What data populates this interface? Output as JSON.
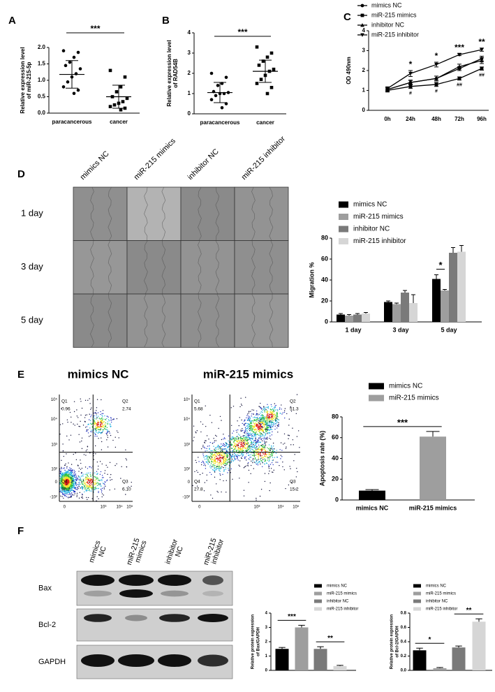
{
  "panel_labels": [
    "A",
    "B",
    "C",
    "D",
    "E",
    "F"
  ],
  "chart_data": [
    {
      "type": "dot",
      "ylabel": [
        "Relative expression level",
        "of miR-215-5p"
      ],
      "categories": [
        "paracancerous",
        "cancer"
      ],
      "markers": [
        "circle",
        "square"
      ],
      "color": "#000000",
      "points": [
        [
          1.9,
          1.85,
          1.7,
          1.55,
          1.45,
          1.35,
          1.2,
          1.1,
          0.95,
          0.8,
          0.7,
          0.6
        ],
        [
          1.3,
          1.1,
          0.8,
          0.65,
          0.5,
          0.45,
          0.35,
          0.3,
          0.25,
          0.2,
          0.15,
          0.1
        ]
      ],
      "means": [
        1.18,
        0.5
      ],
      "sds": [
        0.42,
        0.35
      ],
      "ylim": [
        0,
        2
      ],
      "yticks": [
        {
          "value": 0,
          "label": "0.0"
        },
        {
          "value": 0.5,
          "label": "0.5"
        },
        {
          "value": 1,
          "label": "1.0"
        },
        {
          "value": 1.5,
          "label": "1.5"
        },
        {
          "value": 2,
          "label": "2.0"
        }
      ],
      "significance": [
        {
          "label": "***",
          "from": 0,
          "to": 1
        }
      ]
    },
    {
      "type": "dot",
      "ylabel": [
        "Relative expression level",
        "of RAD54B"
      ],
      "categories": [
        "paracancerous",
        "cancer"
      ],
      "markers": [
        "circle",
        "square"
      ],
      "color": "#000000",
      "points": [
        [
          2.0,
          1.8,
          1.5,
          1.4,
          1.1,
          1.05,
          1.0,
          1.0,
          0.9,
          0.7,
          0.5,
          0.3
        ],
        [
          3.3,
          3.0,
          2.8,
          2.6,
          2.4,
          2.2,
          2.1,
          1.9,
          1.7,
          1.5,
          1.3,
          1.0
        ]
      ],
      "means": [
        1.05,
        2.1
      ],
      "sds": [
        0.5,
        0.55
      ],
      "ylim": [
        0,
        4
      ],
      "yticks": [
        0,
        1,
        2,
        3,
        4
      ],
      "significance": [
        {
          "label": "***",
          "from": 0,
          "to": 1
        }
      ]
    },
    {
      "type": "line",
      "ylabel": [
        "OD 490nm"
      ],
      "categories": [
        "0h",
        "24h",
        "48h",
        "72h",
        "96h"
      ],
      "ylim": [
        0,
        4
      ],
      "yticks": [
        0,
        1,
        2,
        3,
        4
      ],
      "series": [
        {
          "name": "mimics NC",
          "marker": "circle",
          "color": "#000000",
          "values": [
            1.05,
            1.4,
            1.6,
            2.1,
            2.6
          ],
          "errors": [
            0.08,
            0.1,
            0.12,
            0.1,
            0.12
          ]
        },
        {
          "name": "miR-215 mimics",
          "marker": "square",
          "color": "#000000",
          "values": [
            1.0,
            1.2,
            1.3,
            1.6,
            2.1
          ],
          "errors": [
            0.08,
            0.1,
            0.1,
            0.08,
            0.08
          ]
        },
        {
          "name": "inhibitor NC",
          "marker": "triangle-up",
          "color": "#000000",
          "values": [
            1.05,
            1.4,
            1.6,
            2.2,
            2.5
          ],
          "errors": [
            0.08,
            0.12,
            0.12,
            0.12,
            0.15
          ]
        },
        {
          "name": "miR-215 inhibitor",
          "marker": "triangle-down",
          "color": "#000000",
          "values": [
            1.1,
            1.85,
            2.3,
            2.8,
            3.05
          ],
          "errors": [
            0.08,
            0.15,
            0.12,
            0.05,
            0.08
          ]
        }
      ],
      "upper_marks": [
        null,
        "*",
        "*",
        "***",
        "**"
      ],
      "lower_marks": [
        null,
        "#",
        "#",
        "##",
        "##"
      ]
    },
    {
      "type": "grouped-bar",
      "ylabel": [
        "Migration %"
      ],
      "categories": [
        "1 day",
        "3 day",
        "5 day"
      ],
      "ylim": [
        0,
        80
      ],
      "yticks": [
        0,
        20,
        40,
        60,
        80
      ],
      "series": [
        {
          "name": "mimics NC",
          "color": "#000000",
          "values": [
            7,
            19,
            41
          ],
          "errors": [
            1,
            1,
            4
          ]
        },
        {
          "name": "miR-215 mimics",
          "color": "#9e9e9e",
          "values": [
            6,
            17,
            30
          ],
          "errors": [
            1,
            1,
            1
          ]
        },
        {
          "name": "inhibitor NC",
          "color": "#7a7a7a",
          "values": [
            7,
            28,
            66
          ],
          "errors": [
            1,
            2,
            5
          ]
        },
        {
          "name": "miR-215 inhibitor",
          "color": "#d6d6d6",
          "values": [
            8,
            18,
            67
          ],
          "errors": [
            1,
            8,
            6
          ]
        }
      ],
      "significance": [
        {
          "label": "*",
          "category": 2,
          "from": 0,
          "to": 1
        }
      ]
    },
    {
      "type": "bar",
      "ylabel": [
        "Apoptosis rate (%)"
      ],
      "categories": [
        "mimics NC",
        "miR-215 mimics"
      ],
      "colors": [
        "#000000",
        "#9e9e9e"
      ],
      "values": [
        9,
        61
      ],
      "errors": [
        1,
        5
      ],
      "ylim": [
        0,
        80
      ],
      "yticks": [
        0,
        20,
        40,
        60,
        80
      ],
      "category_labels": true,
      "significance": [
        {
          "label": "***",
          "from": 0,
          "to": 1
        }
      ]
    },
    {
      "type": "bar",
      "ylabel": [
        "Relative protein expression",
        "of Bax/GAPDH"
      ],
      "categories": [
        "mimics NC",
        "miR-215 mimics",
        "inhibitor NC",
        "miR-215 inhibitor"
      ],
      "colors": [
        "#000000",
        "#9e9e9e",
        "#7a7a7a",
        "#d6d6d6"
      ],
      "values": [
        1.5,
        3.0,
        1.5,
        0.3
      ],
      "errors": [
        0.1,
        0.15,
        0.15,
        0.05
      ],
      "ylim": [
        0,
        4
      ],
      "yticks": [
        0,
        1,
        2,
        3,
        4
      ],
      "category_labels": false,
      "significance": [
        {
          "label": "***",
          "from": 0,
          "to": 1
        },
        {
          "label": "**",
          "from": 2,
          "to": 3
        }
      ]
    },
    {
      "type": "bar",
      "ylabel": [
        "Relative protein expression",
        "of Bcl-2/GAPDH"
      ],
      "categories": [
        "mimics NC",
        "miR-215 mimics",
        "inhibitor NC",
        "miR-215 inhibitor"
      ],
      "colors": [
        "#000000",
        "#9e9e9e",
        "#7a7a7a",
        "#d6d6d6"
      ],
      "values": [
        0.28,
        0.03,
        0.32,
        0.68
      ],
      "errors": [
        0.03,
        0.01,
        0.02,
        0.04
      ],
      "ylim": [
        0,
        0.8
      ],
      "yticks": [
        {
          "value": 0,
          "label": "0.0"
        },
        0.2,
        0.4,
        0.6,
        0.8
      ],
      "category_labels": false,
      "significance": [
        {
          "label": "*",
          "from": 0,
          "to": 1
        },
        {
          "label": "**",
          "from": 2,
          "to": 3
        }
      ]
    }
  ],
  "scratch": {
    "columns": [
      "mimics NC",
      "miR-215 mimics",
      "inhibitor NC",
      "miR-215 inhibitor"
    ],
    "rows": [
      "1 day",
      "3 day",
      "5 day"
    ]
  },
  "flow": {
    "plots": [
      {
        "title": "mimics NC",
        "quadrants": [
          {
            "name": "Q1",
            "value": "0.96"
          },
          {
            "name": "Q2",
            "value": "2.74"
          },
          {
            "name": "Q3",
            "value": "6.10"
          },
          {
            "name": "Q4",
            "value": "90.2"
          }
        ]
      },
      {
        "title": "miR-215 mimics",
        "quadrants": [
          {
            "name": "Q1",
            "value": "5.68"
          },
          {
            "name": "Q2",
            "value": "51.3"
          },
          {
            "name": "Q3",
            "value": "15.2"
          },
          {
            "name": "Q4",
            "value": "27.8"
          }
        ]
      }
    ],
    "xticks": [
      "0",
      "10³",
      "10⁴",
      "10⁵"
    ],
    "yticks": [
      "10⁵",
      "10⁴",
      "10³",
      "10²",
      "0",
      "-10²"
    ]
  },
  "blot": {
    "lanes": [
      [
        "mimics",
        "NC"
      ],
      [
        "miR-215",
        "mimics"
      ],
      [
        "inhibitor",
        "NC"
      ],
      [
        "miR-215",
        "inhibitor"
      ]
    ],
    "rows": [
      "Bax",
      "Bcl-2",
      "GAPDH"
    ]
  }
}
